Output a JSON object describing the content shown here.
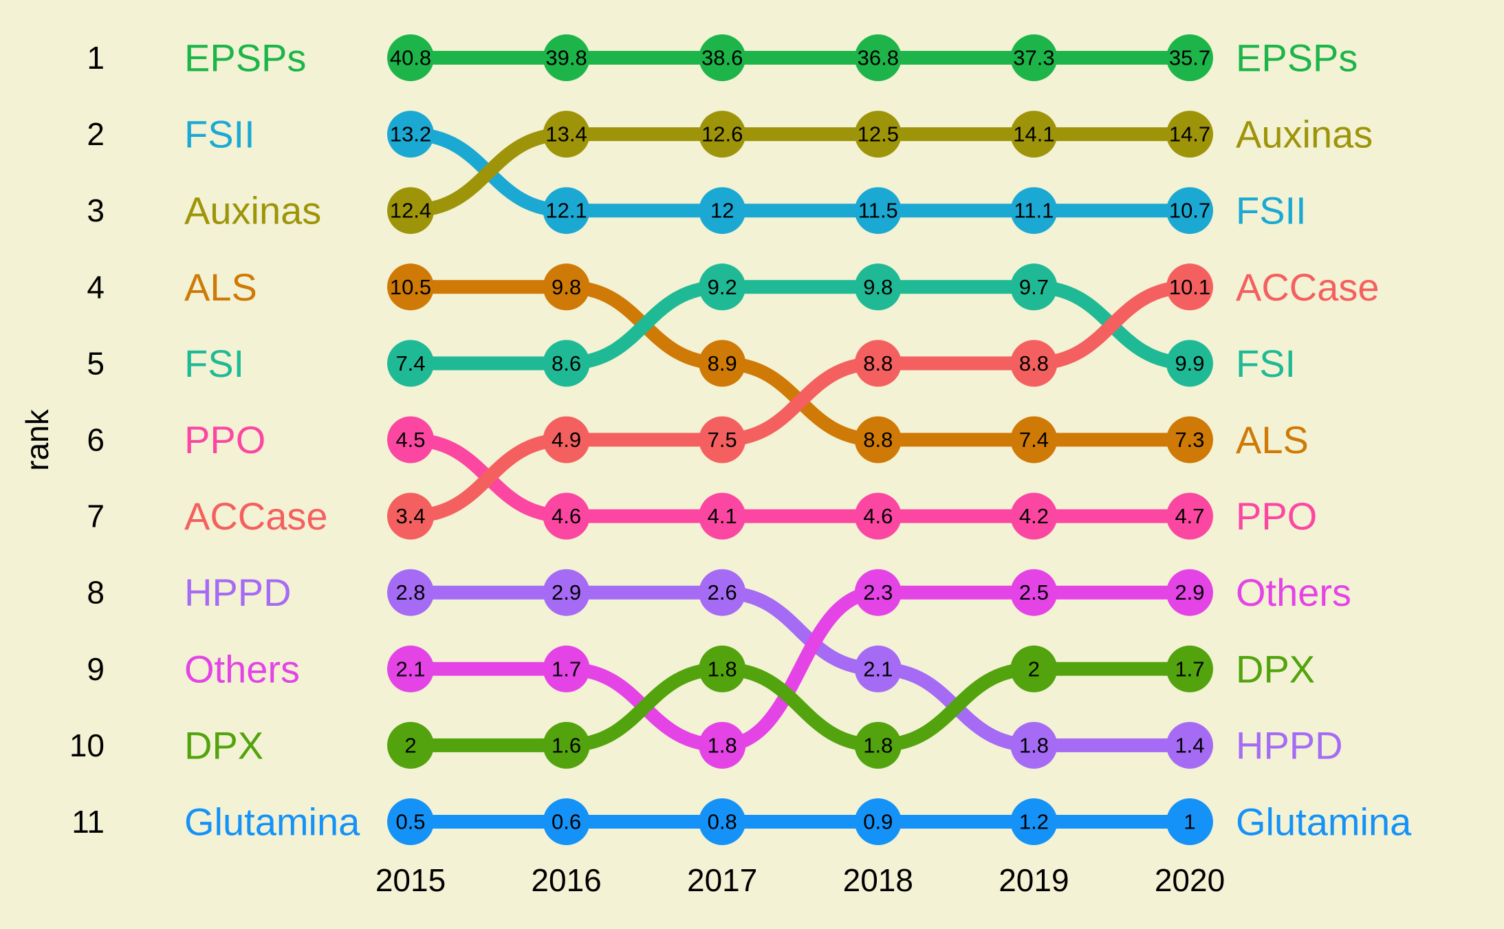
{
  "chart_data": {
    "type": "bump",
    "ylabel": "rank",
    "xlabel": "",
    "years": [
      "2015",
      "2016",
      "2017",
      "2018",
      "2019",
      "2020"
    ],
    "ranks": [
      "1",
      "2",
      "3",
      "4",
      "5",
      "6",
      "7",
      "8",
      "9",
      "10",
      "11"
    ],
    "series": [
      {
        "name": "EPSPs",
        "color": "#1db54a",
        "ranks": [
          1,
          1,
          1,
          1,
          1,
          1
        ],
        "values": [
          "40.8",
          "39.8",
          "38.6",
          "36.8",
          "37.3",
          "35.7"
        ]
      },
      {
        "name": "FSII",
        "color": "#1ba9d4",
        "ranks": [
          2,
          3,
          3,
          3,
          3,
          3
        ],
        "values": [
          "13.2",
          "12.1",
          "12",
          "11.5",
          "11.1",
          "10.7"
        ]
      },
      {
        "name": "Auxinas",
        "color": "#9e9409",
        "ranks": [
          3,
          2,
          2,
          2,
          2,
          2
        ],
        "values": [
          "12.4",
          "13.4",
          "12.6",
          "12.5",
          "14.1",
          "14.7"
        ]
      },
      {
        "name": "ALS",
        "color": "#cf7a06",
        "ranks": [
          4,
          4,
          5,
          6,
          6,
          6
        ],
        "values": [
          "10.5",
          "9.8",
          "8.9",
          "8.8",
          "7.4",
          "7.3"
        ]
      },
      {
        "name": "FSI",
        "color": "#1fba95",
        "ranks": [
          5,
          5,
          4,
          4,
          4,
          5
        ],
        "values": [
          "7.4",
          "8.6",
          "9.2",
          "9.8",
          "9.7",
          "9.9"
        ]
      },
      {
        "name": "PPO",
        "color": "#fb47a2",
        "ranks": [
          6,
          7,
          7,
          7,
          7,
          7
        ],
        "values": [
          "4.5",
          "4.6",
          "4.1",
          "4.6",
          "4.2",
          "4.7"
        ]
      },
      {
        "name": "ACCase",
        "color": "#f4605f",
        "ranks": [
          7,
          6,
          6,
          5,
          5,
          4
        ],
        "values": [
          "3.4",
          "4.9",
          "7.5",
          "8.8",
          "8.8",
          "10.1"
        ]
      },
      {
        "name": "HPPD",
        "color": "#a56bf5",
        "ranks": [
          8,
          8,
          8,
          9,
          10,
          10
        ],
        "values": [
          "2.8",
          "2.9",
          "2.6",
          "2.1",
          "1.8",
          "1.4"
        ]
      },
      {
        "name": "Others",
        "color": "#e444e6",
        "ranks": [
          9,
          9,
          10,
          8,
          8,
          8
        ],
        "values": [
          "2.1",
          "1.7",
          "1.8",
          "2.3",
          "2.5",
          "2.9"
        ]
      },
      {
        "name": "DPX",
        "color": "#52a30d",
        "ranks": [
          10,
          10,
          9,
          10,
          9,
          9
        ],
        "values": [
          "2",
          "1.6",
          "1.8",
          "1.8",
          "2",
          "1.7"
        ]
      },
      {
        "name": "Glutamina",
        "color": "#1592f7",
        "ranks": [
          11,
          11,
          11,
          11,
          11,
          11
        ],
        "values": [
          "0.5",
          "0.6",
          "0.8",
          "0.9",
          "1.2",
          "1"
        ]
      }
    ]
  }
}
